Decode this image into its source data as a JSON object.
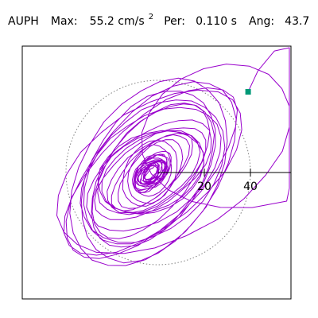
{
  "header": {
    "station": "AUPH",
    "max_label": "Max:",
    "max_value": "55.2 cm/s",
    "max_exponent": "2",
    "per_label": "Per:",
    "per_value": "0.110 s",
    "ang_label": "Ang:",
    "ang_value": "43.7"
  },
  "chart_data": {
    "type": "scatter",
    "subtype": "particle-motion-orbit",
    "title": "",
    "xlabel": "",
    "ylabel": "",
    "xlim": [
      -58,
      58
    ],
    "ylim": [
      -55,
      55
    ],
    "grid": false,
    "legend": "none",
    "x_axis_ticks": [
      20,
      40
    ],
    "x_axis_tick_labels": [
      "20",
      "40"
    ],
    "reference_circle": {
      "style": "dotted",
      "color": "#808080",
      "radius": 40
    },
    "orbit": {
      "color": "#9900cc",
      "angle_deg": 43.7,
      "peak_amplitude": 55.2,
      "n_points": 900
    },
    "end_marker": {
      "shape": "square",
      "color": "#009977",
      "x": 39,
      "y": 35
    }
  }
}
